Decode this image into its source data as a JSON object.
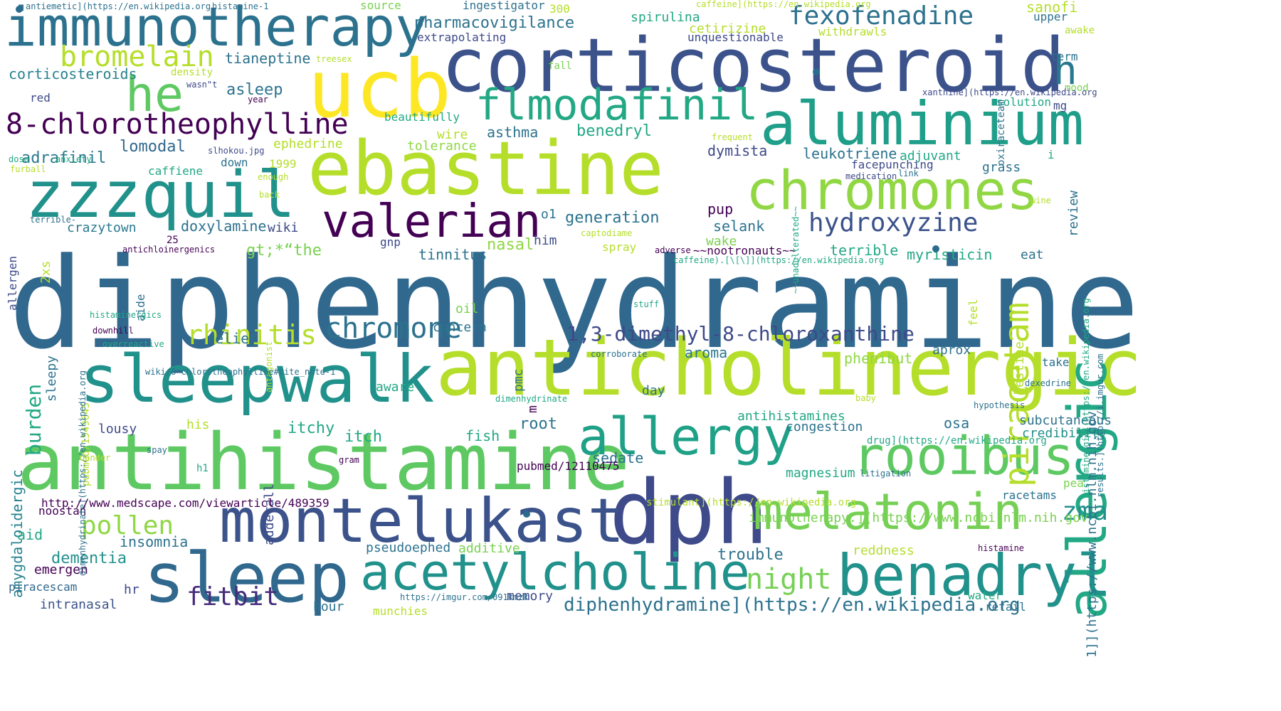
{
  "cloud": {
    "words": [
      {
        "text": "diphenhydramine",
        "size": 176,
        "color": "#31688e"
      },
      {
        "text": "antihistamine",
        "size": 110,
        "color": "#5ec962"
      },
      {
        "text": "anticholinergic",
        "size": 110,
        "color": "#b5de2b"
      },
      {
        "text": "corticosteroid",
        "size": 104,
        "color": "#3b528b"
      },
      {
        "text": "ebastine",
        "size": 104,
        "color": "#b5de2b"
      },
      {
        "text": "ucb",
        "size": 112,
        "color": "#fde725"
      },
      {
        "text": "dph",
        "size": 124,
        "color": "#3e4a89"
      },
      {
        "text": "sleepwalk",
        "size": 92,
        "color": "#21918c"
      },
      {
        "text": "zzzquil",
        "size": 90,
        "color": "#21918c"
      },
      {
        "text": "immunotherapy",
        "size": 76,
        "color": "#2c728e"
      },
      {
        "text": "sleep",
        "size": 96,
        "color": "#31688e"
      },
      {
        "text": "montelukast",
        "size": 86,
        "color": "#3b528b"
      },
      {
        "text": "aluminium",
        "size": 84,
        "color": "#1f9e89"
      },
      {
        "text": "chromones",
        "size": 76,
        "color": "#90d743"
      },
      {
        "text": "allergic",
        "size": 76,
        "color": "#22a884"
      },
      {
        "text": "benadryl",
        "size": 80,
        "color": "#21918c"
      },
      {
        "text": "rooibus",
        "size": 74,
        "color": "#5ec962"
      },
      {
        "text": "acetylcholine",
        "size": 70,
        "color": "#21918c"
      },
      {
        "text": "melatonin",
        "size": 70,
        "color": "#75d054"
      },
      {
        "text": "allergy",
        "size": 72,
        "color": "#1fa187"
      },
      {
        "text": "he",
        "size": 68,
        "color": "#5ec962"
      },
      {
        "text": "valerian",
        "size": 64,
        "color": "#440154"
      },
      {
        "text": "flmodafinil",
        "size": 60,
        "color": "#22a884"
      },
      {
        "text": "h",
        "size": 56,
        "color": "#2a788e"
      },
      {
        "text": "piracetam",
        "size": 48,
        "color": "#b5de2b"
      },
      {
        "text": "8-chlorotheophylline",
        "size": 40,
        "color": "#440154"
      },
      {
        "text": "bromelain",
        "size": 40,
        "color": "#b5de2b"
      },
      {
        "text": "fexofenadine",
        "size": 36,
        "color": "#2c728e"
      },
      {
        "text": "hydroxyzine",
        "size": 36,
        "color": "#3b528b"
      },
      {
        "text": "chromone",
        "size": 40,
        "color": "#2c728e"
      },
      {
        "text": "rhinitis",
        "size": 38,
        "color": "#b5de2b"
      },
      {
        "text": "pollen",
        "size": 36,
        "color": "#8fd744"
      },
      {
        "text": "night",
        "size": 40,
        "color": "#75d054"
      },
      {
        "text": "zma",
        "size": 36,
        "color": "#21918c"
      },
      {
        "text": "fitbit",
        "size": 36,
        "color": "#472c7a"
      },
      {
        "text": "1,3-dimethyl-8-chloroxanthine",
        "size": 28,
        "color": "#3e4a89"
      },
      {
        "text": "diphenhydramine](https://en.wikipedia.org",
        "size": 26,
        "color": "#2c728e"
      },
      {
        "text": "burden",
        "size": 28,
        "color": "#22a884"
      },
      {
        "text": "amygdaloidergic",
        "size": 20,
        "color": "#26828e"
      },
      {
        "text": "pharmacovigilance",
        "size": 22,
        "color": "#2c728e"
      },
      {
        "text": "asleep",
        "size": 22,
        "color": "#2c728e"
      },
      {
        "text": "tianeptine",
        "size": 20,
        "color": "#2c728e"
      },
      {
        "text": "corticosteroids",
        "size": 20,
        "color": "#26828e"
      },
      {
        "text": "adrafinil",
        "size": 22,
        "color": "#2a788e"
      },
      {
        "text": "lomodal",
        "size": 22,
        "color": "#31688e"
      },
      {
        "text": "benedryl",
        "size": 22,
        "color": "#22a884"
      },
      {
        "text": "asthma",
        "size": 20,
        "color": "#2c728e"
      },
      {
        "text": "generation",
        "size": 22,
        "color": "#2c728e"
      },
      {
        "text": "dymista",
        "size": 20,
        "color": "#3e4a89"
      },
      {
        "text": "leukotriene",
        "size": 20,
        "color": "#2c728e"
      },
      {
        "text": "selank",
        "size": 20,
        "color": "#2c728e"
      },
      {
        "text": "pup",
        "size": 20,
        "color": "#440154"
      },
      {
        "text": "doxylamine",
        "size": 20,
        "color": "#2c728e"
      },
      {
        "text": "crazytown",
        "size": 18,
        "color": "#2a788e"
      },
      {
        "text": "wiki",
        "size": 18,
        "color": "#3e4a89"
      },
      {
        "text": "nasal",
        "size": 22,
        "color": "#8fd744"
      },
      {
        "text": "tinnitus",
        "size": 20,
        "color": "#2c728e"
      },
      {
        "text": "relief",
        "size": 20,
        "color": "#2c728e"
      },
      {
        "text": "concern",
        "size": 18,
        "color": "#2c728e"
      },
      {
        "text": "aroma",
        "size": 20,
        "color": "#2a788e"
      },
      {
        "text": "phenibut",
        "size": 20,
        "color": "#8fd744"
      },
      {
        "text": "myristicin",
        "size": 20,
        "color": "#22a884"
      },
      {
        "text": "terrible",
        "size": 20,
        "color": "#22a884"
      },
      {
        "text": "itchy",
        "size": 22,
        "color": "#22a884"
      },
      {
        "text": "itch",
        "size": 22,
        "color": "#22a884"
      },
      {
        "text": "lousy",
        "size": 18,
        "color": "#3e4a89"
      },
      {
        "text": "root",
        "size": 22,
        "color": "#2c728e"
      },
      {
        "text": "fish",
        "size": 20,
        "color": "#22a884"
      },
      {
        "text": "sedate",
        "size": 20,
        "color": "#2c728e"
      },
      {
        "text": "congestion",
        "size": 18,
        "color": "#2c728e"
      },
      {
        "text": "antihistamines",
        "size": 18,
        "color": "#22a884"
      },
      {
        "text": "subcutaneous",
        "size": 18,
        "color": "#2c728e"
      },
      {
        "text": "credibility",
        "size": 18,
        "color": "#21918c"
      },
      {
        "text": "magnesium",
        "size": 18,
        "color": "#22a884"
      },
      {
        "text": "insomnia",
        "size": 20,
        "color": "#2c728e"
      },
      {
        "text": "dementia",
        "size": 22,
        "color": "#21918c"
      },
      {
        "text": "pseudoephed",
        "size": 18,
        "color": "#2c728e"
      },
      {
        "text": "additive",
        "size": 18,
        "color": "#7ad151"
      },
      {
        "text": "trouble",
        "size": 22,
        "color": "#2c728e"
      },
      {
        "text": "reddness",
        "size": 18,
        "color": "#b5de2b"
      },
      {
        "text": "memory",
        "size": 18,
        "color": "#3e4a89"
      },
      {
        "text": "intranasal",
        "size": 18,
        "color": "#3b528b"
      },
      {
        "text": "emergen",
        "size": 18,
        "color": "#440154"
      },
      {
        "text": "aid",
        "size": 20,
        "color": "#22a884"
      },
      {
        "text": "noostan",
        "size": 16,
        "color": "#440154"
      },
      {
        "text": "piracescam",
        "size": 16,
        "color": "#31688e"
      },
      {
        "text": "hour",
        "size": 18,
        "color": "#2c728e"
      },
      {
        "text": "hr",
        "size": 18,
        "color": "#3e4a89"
      },
      {
        "text": "munchies",
        "size": 16,
        "color": "#b5de2b"
      },
      {
        "text": "retail",
        "size": 16,
        "color": "#2c728e"
      },
      {
        "text": "water",
        "size": 16,
        "color": "#22a884"
      },
      {
        "text": "pea",
        "size": 16,
        "color": "#7ad151"
      },
      {
        "text": "racetams",
        "size": 16,
        "color": "#2c728e"
      },
      {
        "text": "osa",
        "size": 20,
        "color": "#2c728e"
      },
      {
        "text": "take",
        "size": 16,
        "color": "#2c728e"
      },
      {
        "text": "eat",
        "size": 18,
        "color": "#2c728e"
      },
      {
        "text": "aprox",
        "size": 18,
        "color": "#2c728e"
      },
      {
        "text": "wake",
        "size": 18,
        "color": "#7ad151"
      },
      {
        "text": "spray",
        "size": 16,
        "color": "#b5de2b"
      },
      {
        "text": "him",
        "size": 18,
        "color": "#3e4a89"
      },
      {
        "text": "o1",
        "size": 18,
        "color": "#2c728e"
      },
      {
        "text": "gnp",
        "size": 16,
        "color": "#3e4a89"
      },
      {
        "text": "oil",
        "size": 18,
        "color": "#7ad151"
      },
      {
        "text": "day",
        "size": 18,
        "color": "#2c728e"
      },
      {
        "text": "pmc",
        "size": 18,
        "color": "#2c728e"
      },
      {
        "text": "aware",
        "size": 18,
        "color": "#22a884"
      },
      {
        "text": "m",
        "size": 18,
        "color": "#440154"
      },
      {
        "text": "his",
        "size": 18,
        "color": "#b5de2b"
      },
      {
        "text": "h1",
        "size": 14,
        "color": "#22a884"
      },
      {
        "text": "adderall",
        "size": 18,
        "color": "#3e4a89"
      },
      {
        "text": "aide",
        "size": 16,
        "color": "#2c728e"
      },
      {
        "text": "sleepy",
        "size": 18,
        "color": "#2c728e"
      },
      {
        "text": "2xs",
        "size": 18,
        "color": "#b5de2b"
      },
      {
        "text": "allergen",
        "size": 16,
        "color": "#3e4a89"
      },
      {
        "text": "gt;*“the",
        "size": 22,
        "color": "#7ad151"
      },
      {
        "text": "caffiene",
        "size": 16,
        "color": "#22a884"
      },
      {
        "text": "down",
        "size": 16,
        "color": "#2c728e"
      },
      {
        "text": "1999",
        "size": 16,
        "color": "#b5de2b"
      },
      {
        "text": "ephedrine",
        "size": 18,
        "color": "#b5de2b"
      },
      {
        "text": "tolerance",
        "size": 18,
        "color": "#8fd744"
      },
      {
        "text": "wire",
        "size": 18,
        "color": "#b5de2b"
      },
      {
        "text": "beautifully",
        "size": 16,
        "color": "#22a884"
      },
      {
        "text": "spirulina",
        "size": 18,
        "color": "#22a884"
      },
      {
        "text": "cetirizine",
        "size": 18,
        "color": "#b5de2b"
      },
      {
        "text": "unquestionable",
        "size": 16,
        "color": "#3e4a89"
      },
      {
        "text": "extrapolating",
        "size": 16,
        "color": "#3e4a89"
      },
      {
        "text": "ingestigator",
        "size": 16,
        "color": "#2c728e"
      },
      {
        "text": "source",
        "size": 16,
        "color": "#7ad151"
      },
      {
        "text": "300",
        "size": 16,
        "color": "#b5de2b"
      },
      {
        "text": "sanofi",
        "size": 20,
        "color": "#b5de2b"
      },
      {
        "text": "withdrawls",
        "size": 16,
        "color": "#b5de2b"
      },
      {
        "text": "upper",
        "size": 16,
        "color": "#2c728e"
      },
      {
        "text": "awake",
        "size": 14,
        "color": "#b5de2b"
      },
      {
        "text": "term",
        "size": 16,
        "color": "#2c728e"
      },
      {
        "text": "mood",
        "size": 14,
        "color": "#7ad151"
      },
      {
        "text": "mg",
        "size": 16,
        "color": "#3e4a89"
      },
      {
        "text": "solution",
        "size": 16,
        "color": "#22a884"
      },
      {
        "text": "oxiraceteam",
        "size": 14,
        "color": "#2c728e"
      },
      {
        "text": "facepunching",
        "size": 16,
        "color": "#3e4a89"
      },
      {
        "text": "adjuvant",
        "size": 18,
        "color": "#22a884"
      },
      {
        "text": "grass",
        "size": 18,
        "color": "#2c728e"
      },
      {
        "text": "i",
        "size": 16,
        "color": "#22a884"
      },
      {
        "text": "review",
        "size": 18,
        "color": "#2c728e"
      },
      {
        "text": "wine",
        "size": 12,
        "color": "#b5de2b"
      },
      {
        "text": "red",
        "size": 16,
        "color": "#3e4a89"
      },
      {
        "text": "density",
        "size": 14,
        "color": "#b5de2b"
      },
      {
        "text": "wasn\"t",
        "size": 12,
        "color": "#3e4a89"
      },
      {
        "text": "year",
        "size": 12,
        "color": "#440154"
      },
      {
        "text": "fall",
        "size": 14,
        "color": "#7ad151"
      },
      {
        "text": "treesex",
        "size": 12,
        "color": "#b5de2b"
      },
      {
        "text": "slhokou.jpg",
        "size": 12,
        "color": "#3e4a89"
      },
      {
        "text": "dose",
        "size": 12,
        "color": "#22a884"
      },
      {
        "text": "anxiety",
        "size": 12,
        "color": "#22a884"
      },
      {
        "text": "furball",
        "size": 12,
        "color": "#b5de2b"
      },
      {
        "text": "terrible-",
        "size": 12,
        "color": "#2c728e"
      },
      {
        "text": "antichloinergenics",
        "size": 12,
        "color": "#440154"
      },
      {
        "text": "25",
        "size": 14,
        "color": "#440154"
      },
      {
        "text": "enough",
        "size": 12,
        "color": "#b5de2b"
      },
      {
        "text": "back",
        "size": 12,
        "color": "#b5de2b"
      },
      {
        "text": "frequent",
        "size": 12,
        "color": "#b5de2b"
      },
      {
        "text": "medication",
        "size": 12,
        "color": "#3e4a89"
      },
      {
        "text": "link",
        "size": 12,
        "color": "#2c728e"
      },
      {
        "text": "captodiame",
        "size": 12,
        "color": "#b5de2b"
      },
      {
        "text": "adverse",
        "size": 12,
        "color": "#440154"
      },
      {
        "text": "~~nootronauts~~",
        "size": 16,
        "color": "#440154"
      },
      {
        "text": "caffeine).[\\[\\]](https://en.wikipedia.org",
        "size": 12,
        "color": "#22a884"
      },
      {
        "text": "~~unadulterated~~",
        "size": 12,
        "color": "#22a884"
      },
      {
        "text": "stuff",
        "size": 12,
        "color": "#22a884"
      },
      {
        "text": "antagonist",
        "size": 12,
        "color": "#b5de2b"
      },
      {
        "text": "kestine",
        "size": 18,
        "color": "#b5de2b"
      },
      {
        "text": "feel",
        "size": 16,
        "color": "#b5de2b"
      },
      {
        "text": "histaminergics",
        "size": 12,
        "color": "#22a884"
      },
      {
        "text": "downhill",
        "size": 12,
        "color": "#440154"
      },
      {
        "text": "overreactive",
        "size": 12,
        "color": "#22a884"
      },
      {
        "text": "wiki/8-chlorotheophylline#cite_note-1",
        "size": 12,
        "color": "#2c728e"
      },
      {
        "text": "pubmed/1549645",
        "size": 14,
        "color": "#b5de2b"
      },
      {
        "text": "dimenhydrinate](https://en.wikipedia.org",
        "size": 12,
        "color": "#2c728e"
      },
      {
        "text": "antiemetic](https://en.wikipedia.org",
        "size": 12,
        "color": "#2c728e"
      },
      {
        "text": "histamine-1",
        "size": 12,
        "color": "#2c728e"
      },
      {
        "text": "caffeine](https://en.wikipedia.org",
        "size": 12,
        "color": "#b5de2b"
      },
      {
        "text": "xanthine](https://en.wikipedia.org",
        "size": 12,
        "color": "#3e4a89"
      },
      {
        "text": "histaminergic](https://en.wikipedia.org",
        "size": 12,
        "color": "#22a884"
      },
      {
        "text": "corroborate",
        "size": 12,
        "color": "#2c728e"
      },
      {
        "text": "dexedrine",
        "size": 12,
        "color": "#2c728e"
      },
      {
        "text": "baby",
        "size": 12,
        "color": "#b5de2b"
      },
      {
        "text": "hypothesis",
        "size": 12,
        "color": "#2c728e"
      },
      {
        "text": "dimenhydrinate",
        "size": 12,
        "color": "#22a884"
      },
      {
        "text": "dander",
        "size": 12,
        "color": "#b5de2b"
      },
      {
        "text": "spay",
        "size": 12,
        "color": "#2c728e"
      },
      {
        "text": "gram",
        "size": 12,
        "color": "#440154"
      },
      {
        "text": "pubmed/12110475",
        "size": 16,
        "color": "#440154"
      },
      {
        "text": "drug](https://en.wikipedia.org",
        "size": 14,
        "color": "#22a884"
      },
      {
        "text": "litigation",
        "size": 12,
        "color": "#2c728e"
      },
      {
        "text": "stimulant](https://en.wikipedia.org",
        "size": 14,
        "color": "#b5de2b"
      },
      {
        "text": "http://www.medscape.com/viewarticle/489359",
        "size": 16,
        "color": "#440154"
      },
      {
        "text": "immunotherapy.](https://www.ncbi.nlm.nih.gov",
        "size": 18,
        "color": "#7ad151"
      },
      {
        "text": "histamine",
        "size": 12,
        "color": "#440154"
      },
      {
        "text": "https://imgur.com/091kmzk",
        "size": 12,
        "color": "#2c728e"
      },
      {
        "text": "1]](https://www.ncbi.nlm.nih.gov",
        "size": 18,
        "color": "#2c728e"
      },
      {
        "text": "results.](http://i.imgur.com",
        "size": 12,
        "color": "#2c728e"
      }
    ]
  }
}
